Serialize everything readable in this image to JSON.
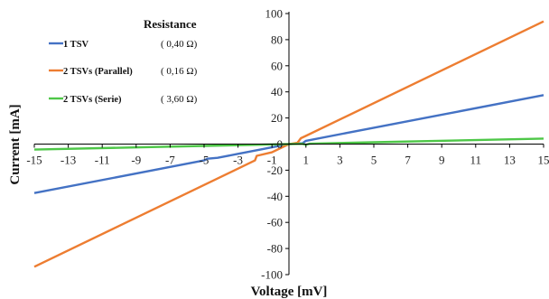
{
  "chart_data": {
    "type": "line",
    "title": "",
    "xlabel": "Voltage [mV]",
    "ylabel": "Current [mA]",
    "xlim": [
      -15,
      15
    ],
    "ylim": [
      -100,
      100
    ],
    "x_ticks": [
      -15,
      -13,
      -11,
      -9,
      -7,
      -5,
      -3,
      -1,
      1,
      3,
      5,
      7,
      9,
      11,
      13,
      15
    ],
    "y_ticks": [
      -100,
      -80,
      -60,
      -40,
      -20,
      0,
      20,
      40,
      60,
      80,
      100
    ],
    "grid": false,
    "legend": {
      "placement": "top-left",
      "header": "Resistance"
    },
    "series": [
      {
        "name": "1 TSV",
        "resistance": "( 0,40 Ω)",
        "color": "#4472c4",
        "points": [
          [
            -15,
            -37.5
          ],
          [
            -5,
            -12.5
          ],
          [
            -4.8,
            -11.2
          ],
          [
            -4.2,
            -10.5
          ],
          [
            -3,
            -7.5
          ],
          [
            -1,
            -2.5
          ],
          [
            0,
            0
          ],
          [
            0.8,
            0.6
          ],
          [
            1,
            2.5
          ],
          [
            5,
            12.5
          ],
          [
            10,
            25
          ],
          [
            15,
            37.5
          ]
        ]
      },
      {
        "name": "2 TSVs (Parallel)",
        "resistance": "( 0,16 Ω)",
        "color": "#ed7d31",
        "points": [
          [
            -15,
            -94
          ],
          [
            -2,
            -12.5
          ],
          [
            -1.9,
            -9
          ],
          [
            -1,
            -6.3
          ],
          [
            0,
            0
          ],
          [
            0.5,
            1
          ],
          [
            0.7,
            4.5
          ],
          [
            1,
            6.3
          ],
          [
            15,
            94
          ]
        ]
      },
      {
        "name": "2 TSVs (Serie)",
        "resistance": "( 3,60 Ω)",
        "color": "#4ec748",
        "points": [
          [
            -15,
            -4.2
          ],
          [
            -5,
            -1.4
          ],
          [
            0,
            0
          ],
          [
            0.8,
            0.2
          ],
          [
            1,
            -0.6
          ],
          [
            1.2,
            0.3
          ],
          [
            5,
            1.4
          ],
          [
            15,
            4.2
          ]
        ]
      }
    ]
  }
}
